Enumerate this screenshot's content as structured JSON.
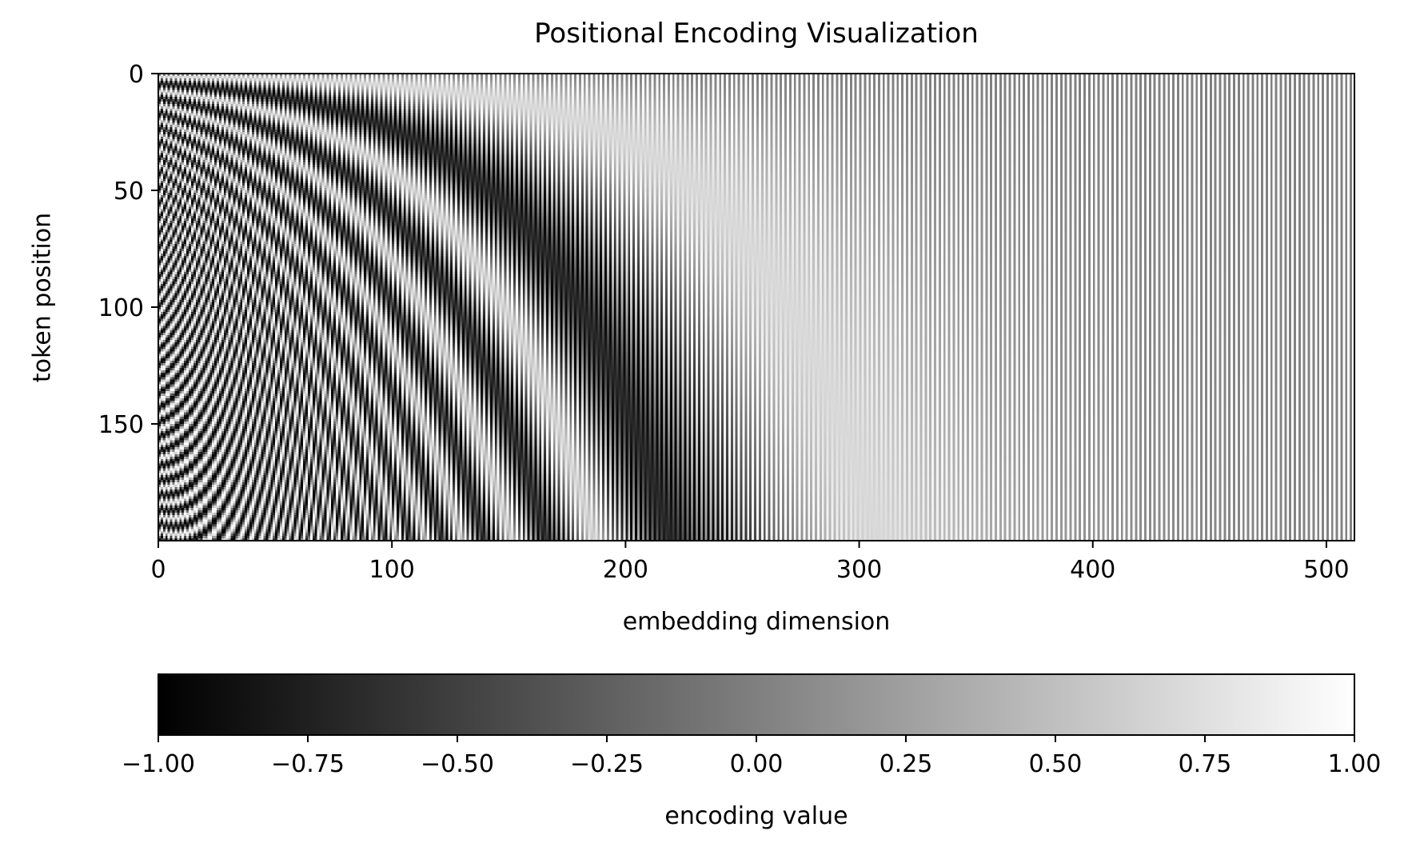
{
  "chart_data": {
    "type": "heatmap",
    "title": "Positional Encoding Visualization",
    "xlabel": "embedding dimension",
    "ylabel": "token position",
    "x_range": [
      0,
      512
    ],
    "y_range": [
      0,
      200
    ],
    "y_inverted": true,
    "x_ticks": [
      0,
      100,
      200,
      300,
      400,
      500
    ],
    "y_ticks": [
      0,
      50,
      100,
      150
    ],
    "value_range": [
      -1.0,
      1.0
    ],
    "colormap": "gray",
    "colorbar": {
      "label": "encoding value",
      "ticks": [
        -1.0,
        -0.75,
        -0.5,
        -0.25,
        0.0,
        0.25,
        0.5,
        0.75,
        1.0
      ],
      "tick_labels": [
        "−1.00",
        "−0.75",
        "−0.50",
        "−0.25",
        "0.00",
        "0.25",
        "0.50",
        "0.75",
        "1.00"
      ]
    },
    "grid": false
  }
}
